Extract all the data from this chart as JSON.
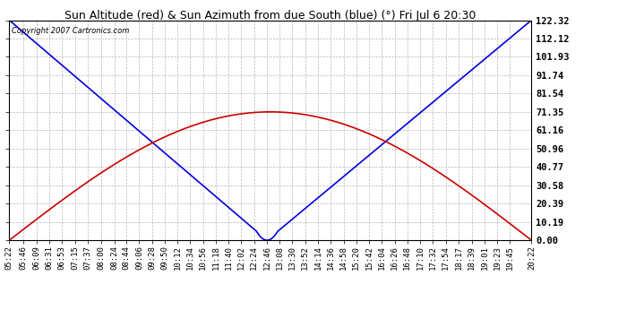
{
  "title": "Sun Altitude (red) & Sun Azimuth from due South (blue) (°) Fri Jul 6 20:30",
  "copyright": "Copyright 2007 Cartronics.com",
  "yticks": [
    0.0,
    10.19,
    20.39,
    30.58,
    40.77,
    50.96,
    61.16,
    71.35,
    81.54,
    91.74,
    101.93,
    112.12,
    122.32
  ],
  "ymin": 0.0,
  "ymax": 122.32,
  "bg_color": "#ffffff",
  "plot_bg_color": "#ffffff",
  "grid_color": "#b0b0b0",
  "blue_color": "#0000dd",
  "red_color": "#cc0000",
  "xtick_labels": [
    "05:22",
    "05:46",
    "06:09",
    "06:31",
    "06:53",
    "07:15",
    "07:37",
    "08:00",
    "08:24",
    "08:44",
    "09:06",
    "09:28",
    "09:50",
    "10:12",
    "10:34",
    "10:56",
    "11:18",
    "11:40",
    "12:02",
    "12:24",
    "12:46",
    "13:08",
    "13:30",
    "13:52",
    "14:14",
    "14:36",
    "14:58",
    "15:20",
    "15:42",
    "16:04",
    "16:26",
    "16:48",
    "17:10",
    "17:32",
    "17:54",
    "18:17",
    "18:39",
    "19:01",
    "19:23",
    "19:45",
    "20:22"
  ],
  "alt_peak": 71.35,
  "alt_peak_time": 12.9,
  "az_min_time": 12.77,
  "az_max": 122.32,
  "title_fontsize": 9,
  "ylabel_fontsize": 7.5,
  "xlabel_fontsize": 6.5
}
